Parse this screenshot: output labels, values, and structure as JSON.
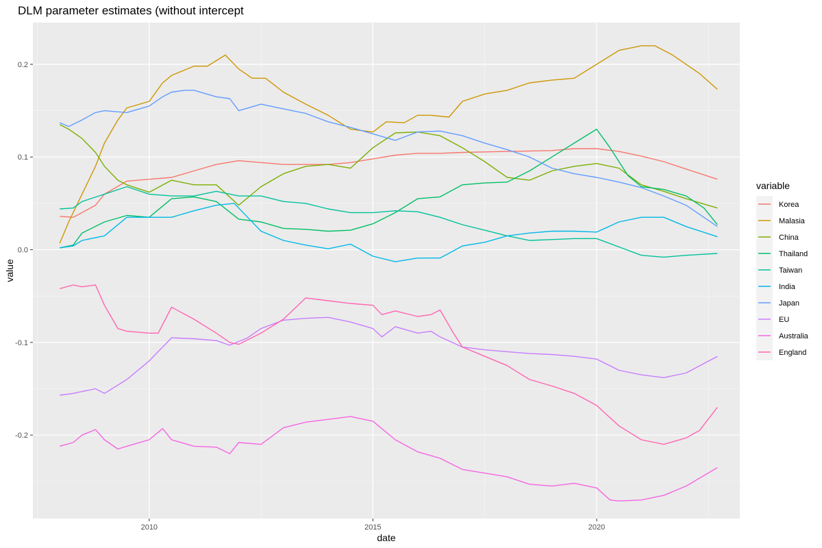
{
  "chart_data": {
    "type": "line",
    "title": "DLM parameter estimates (without intercept",
    "xlabel": "date",
    "ylabel": "value",
    "xlim": [
      2007.4,
      2023.2
    ],
    "ylim": [
      -0.29,
      0.245
    ],
    "x_ticks": [
      2010,
      2015,
      2020
    ],
    "x_tick_labels": [
      "2010",
      "2015",
      "2020"
    ],
    "y_ticks": [
      -0.2,
      -0.1,
      0.0,
      0.1,
      0.2
    ],
    "y_tick_labels": [
      "-0.2",
      "-0.1",
      "0.0",
      "0.1",
      "0.2"
    ],
    "grid": true,
    "legend": {
      "title": "variable",
      "placement": "right"
    },
    "series": [
      {
        "name": "Korea",
        "color": "#F8766D",
        "x": [
          2008.0,
          2008.3,
          2008.5,
          2008.8,
          2009.0,
          2009.5,
          2010.0,
          2010.5,
          2011.0,
          2011.5,
          2012.0,
          2012.5,
          2013.0,
          2014.0,
          2014.5,
          2015.0,
          2015.5,
          2016.0,
          2016.5,
          2017.0,
          2018.0,
          2019.0,
          2019.5,
          2020.0,
          2020.5,
          2021.0,
          2021.5,
          2022.0,
          2022.7
        ],
        "y": [
          0.036,
          0.035,
          0.04,
          0.048,
          0.06,
          0.074,
          0.076,
          0.078,
          0.085,
          0.092,
          0.096,
          0.094,
          0.092,
          0.092,
          0.094,
          0.098,
          0.102,
          0.104,
          0.104,
          0.105,
          0.106,
          0.107,
          0.109,
          0.109,
          0.106,
          0.101,
          0.095,
          0.087,
          0.076
        ]
      },
      {
        "name": "Malasia",
        "color": "#CD9600",
        "x": [
          2008.0,
          2008.2,
          2008.5,
          2008.8,
          2009.0,
          2009.3,
          2009.5,
          2010.0,
          2010.3,
          2010.5,
          2011.0,
          2011.3,
          2011.7,
          2012.0,
          2012.3,
          2012.6,
          2013.0,
          2013.5,
          2014.0,
          2014.5,
          2015.0,
          2015.3,
          2015.7,
          2016.0,
          2016.3,
          2016.7,
          2017.0,
          2017.5,
          2018.0,
          2018.5,
          2019.0,
          2019.5,
          2020.0,
          2020.5,
          2021.0,
          2021.3,
          2021.7,
          2022.0,
          2022.3,
          2022.7
        ],
        "y": [
          0.007,
          0.03,
          0.06,
          0.09,
          0.115,
          0.14,
          0.153,
          0.16,
          0.18,
          0.188,
          0.198,
          0.198,
          0.21,
          0.195,
          0.185,
          0.185,
          0.17,
          0.157,
          0.145,
          0.13,
          0.127,
          0.138,
          0.137,
          0.145,
          0.145,
          0.143,
          0.16,
          0.168,
          0.172,
          0.18,
          0.183,
          0.185,
          0.2,
          0.215,
          0.22,
          0.22,
          0.21,
          0.2,
          0.19,
          0.173
        ]
      },
      {
        "name": "China",
        "color": "#7CAE00",
        "x": [
          2008.0,
          2008.2,
          2008.5,
          2008.8,
          2009.0,
          2009.3,
          2009.5,
          2010.0,
          2010.5,
          2011.0,
          2011.5,
          2012.0,
          2012.5,
          2013.0,
          2013.5,
          2014.0,
          2014.5,
          2015.0,
          2015.5,
          2016.0,
          2016.5,
          2017.0,
          2017.5,
          2018.0,
          2018.5,
          2019.0,
          2019.5,
          2020.0,
          2020.5,
          2021.0,
          2021.5,
          2022.0,
          2022.7
        ],
        "y": [
          0.135,
          0.13,
          0.12,
          0.105,
          0.09,
          0.075,
          0.07,
          0.062,
          0.075,
          0.07,
          0.07,
          0.048,
          0.068,
          0.082,
          0.09,
          0.092,
          0.088,
          0.11,
          0.126,
          0.127,
          0.123,
          0.11,
          0.095,
          0.078,
          0.075,
          0.085,
          0.09,
          0.093,
          0.088,
          0.07,
          0.063,
          0.055,
          0.045
        ]
      },
      {
        "name": "Thailand",
        "color": "#00BE67",
        "x": [
          2008.0,
          2008.3,
          2008.5,
          2009.0,
          2009.5,
          2010.0,
          2010.5,
          2011.0,
          2011.5,
          2012.0,
          2012.5,
          2013.0,
          2013.5,
          2014.0,
          2014.5,
          2015.0,
          2015.5,
          2016.0,
          2016.5,
          2017.0,
          2017.5,
          2018.0,
          2018.5,
          2019.0,
          2019.5,
          2020.0,
          2020.3,
          2020.7,
          2021.0,
          2021.5,
          2022.0,
          2022.4,
          2022.7
        ],
        "y": [
          0.002,
          0.005,
          0.018,
          0.03,
          0.037,
          0.035,
          0.055,
          0.057,
          0.052,
          0.033,
          0.03,
          0.023,
          0.022,
          0.02,
          0.021,
          0.028,
          0.04,
          0.055,
          0.057,
          0.07,
          0.072,
          0.073,
          0.085,
          0.1,
          0.115,
          0.13,
          0.11,
          0.08,
          0.068,
          0.065,
          0.058,
          0.045,
          0.027
        ]
      },
      {
        "name": "Taiwan",
        "color": "#00C19A",
        "x": [
          2008.0,
          2008.3,
          2008.5,
          2009.0,
          2009.5,
          2010.0,
          2010.5,
          2011.0,
          2011.5,
          2012.0,
          2012.5,
          2013.0,
          2013.5,
          2014.0,
          2014.5,
          2015.0,
          2015.5,
          2016.0,
          2016.5,
          2017.0,
          2017.5,
          2018.0,
          2018.5,
          2019.0,
          2019.5,
          2020.0,
          2020.5,
          2021.0,
          2021.5,
          2022.0,
          2022.7
        ],
        "y": [
          0.044,
          0.045,
          0.052,
          0.06,
          0.068,
          0.06,
          0.058,
          0.058,
          0.063,
          0.058,
          0.058,
          0.052,
          0.05,
          0.044,
          0.04,
          0.04,
          0.042,
          0.041,
          0.035,
          0.027,
          0.021,
          0.015,
          0.01,
          0.011,
          0.012,
          0.012,
          0.003,
          -0.006,
          -0.008,
          -0.006,
          -0.004
        ]
      },
      {
        "name": "India",
        "color": "#00B8E7",
        "x": [
          2008.0,
          2008.3,
          2008.5,
          2009.0,
          2009.5,
          2010.0,
          2010.5,
          2011.0,
          2011.5,
          2011.9,
          2012.2,
          2012.5,
          2013.0,
          2013.5,
          2014.0,
          2014.5,
          2015.0,
          2015.5,
          2016.0,
          2016.5,
          2017.0,
          2017.5,
          2018.0,
          2018.5,
          2019.0,
          2019.5,
          2020.0,
          2020.5,
          2021.0,
          2021.5,
          2022.0,
          2022.7
        ],
        "y": [
          0.002,
          0.004,
          0.01,
          0.015,
          0.035,
          0.035,
          0.035,
          0.042,
          0.048,
          0.05,
          0.035,
          0.02,
          0.01,
          0.005,
          0.001,
          0.006,
          -0.007,
          -0.013,
          -0.009,
          -0.009,
          0.004,
          0.008,
          0.015,
          0.018,
          0.02,
          0.02,
          0.019,
          0.03,
          0.035,
          0.035,
          0.025,
          0.014
        ]
      },
      {
        "name": "Japan",
        "color": "#619CFF",
        "x": [
          2008.0,
          2008.2,
          2008.5,
          2008.8,
          2009.0,
          2009.5,
          2010.0,
          2010.3,
          2010.5,
          2010.8,
          2011.0,
          2011.5,
          2011.8,
          2012.0,
          2012.5,
          2013.0,
          2013.5,
          2014.0,
          2014.5,
          2015.0,
          2015.5,
          2016.0,
          2016.5,
          2017.0,
          2017.5,
          2018.0,
          2018.5,
          2019.0,
          2019.5,
          2020.0,
          2020.5,
          2021.0,
          2021.5,
          2022.0,
          2022.7
        ],
        "y": [
          0.137,
          0.133,
          0.14,
          0.148,
          0.15,
          0.148,
          0.155,
          0.165,
          0.17,
          0.172,
          0.172,
          0.165,
          0.163,
          0.15,
          0.157,
          0.152,
          0.147,
          0.138,
          0.132,
          0.125,
          0.118,
          0.127,
          0.128,
          0.123,
          0.115,
          0.108,
          0.1,
          0.088,
          0.082,
          0.078,
          0.073,
          0.067,
          0.058,
          0.048,
          0.025
        ]
      },
      {
        "name": "EU",
        "color": "#C77CFF",
        "x": [
          2008.0,
          2008.3,
          2008.5,
          2008.8,
          2009.0,
          2009.5,
          2010.0,
          2010.5,
          2011.0,
          2011.5,
          2011.8,
          2012.2,
          2012.5,
          2013.0,
          2013.5,
          2014.0,
          2014.5,
          2015.0,
          2015.2,
          2015.5,
          2016.0,
          2016.3,
          2016.5,
          2017.0,
          2017.5,
          2018.0,
          2018.5,
          2019.0,
          2019.5,
          2020.0,
          2020.5,
          2021.0,
          2021.5,
          2022.0,
          2022.7
        ],
        "y": [
          -0.157,
          -0.155,
          -0.153,
          -0.15,
          -0.155,
          -0.14,
          -0.12,
          -0.095,
          -0.096,
          -0.098,
          -0.103,
          -0.095,
          -0.085,
          -0.076,
          -0.074,
          -0.073,
          -0.078,
          -0.085,
          -0.094,
          -0.083,
          -0.09,
          -0.088,
          -0.094,
          -0.105,
          -0.108,
          -0.11,
          -0.112,
          -0.113,
          -0.115,
          -0.118,
          -0.13,
          -0.135,
          -0.138,
          -0.133,
          -0.115
        ]
      },
      {
        "name": "Australia",
        "color": "#F564E3",
        "x": [
          2008.0,
          2008.3,
          2008.5,
          2008.8,
          2009.0,
          2009.3,
          2009.5,
          2010.0,
          2010.3,
          2010.5,
          2011.0,
          2011.5,
          2011.8,
          2012.0,
          2012.5,
          2013.0,
          2013.5,
          2014.0,
          2014.5,
          2015.0,
          2015.5,
          2016.0,
          2016.5,
          2017.0,
          2017.5,
          2018.0,
          2018.5,
          2019.0,
          2019.5,
          2020.0,
          2020.3,
          2020.5,
          2021.0,
          2021.5,
          2022.0,
          2022.7
        ],
        "y": [
          -0.212,
          -0.208,
          -0.2,
          -0.194,
          -0.205,
          -0.215,
          -0.212,
          -0.205,
          -0.193,
          -0.205,
          -0.212,
          -0.213,
          -0.22,
          -0.208,
          -0.21,
          -0.192,
          -0.186,
          -0.183,
          -0.18,
          -0.185,
          -0.205,
          -0.218,
          -0.225,
          -0.237,
          -0.241,
          -0.245,
          -0.253,
          -0.255,
          -0.252,
          -0.257,
          -0.27,
          -0.271,
          -0.27,
          -0.265,
          -0.255,
          -0.235
        ]
      },
      {
        "name": "England",
        "color": "#FF64B0",
        "x": [
          2008.0,
          2008.3,
          2008.5,
          2008.8,
          2009.0,
          2009.3,
          2009.5,
          2010.0,
          2010.2,
          2010.5,
          2011.0,
          2011.5,
          2011.8,
          2012.0,
          2012.5,
          2013.0,
          2013.5,
          2014.0,
          2014.5,
          2015.0,
          2015.2,
          2015.5,
          2016.0,
          2016.3,
          2016.5,
          2016.8,
          2017.0,
          2017.5,
          2018.0,
          2018.5,
          2019.0,
          2019.5,
          2020.0,
          2020.5,
          2021.0,
          2021.5,
          2022.0,
          2022.3,
          2022.7
        ],
        "y": [
          -0.042,
          -0.038,
          -0.04,
          -0.038,
          -0.06,
          -0.085,
          -0.088,
          -0.09,
          -0.09,
          -0.062,
          -0.075,
          -0.09,
          -0.1,
          -0.102,
          -0.09,
          -0.075,
          -0.052,
          -0.055,
          -0.058,
          -0.06,
          -0.07,
          -0.066,
          -0.072,
          -0.07,
          -0.065,
          -0.09,
          -0.105,
          -0.115,
          -0.125,
          -0.14,
          -0.147,
          -0.155,
          -0.168,
          -0.19,
          -0.205,
          -0.21,
          -0.203,
          -0.195,
          -0.17
        ]
      }
    ]
  }
}
